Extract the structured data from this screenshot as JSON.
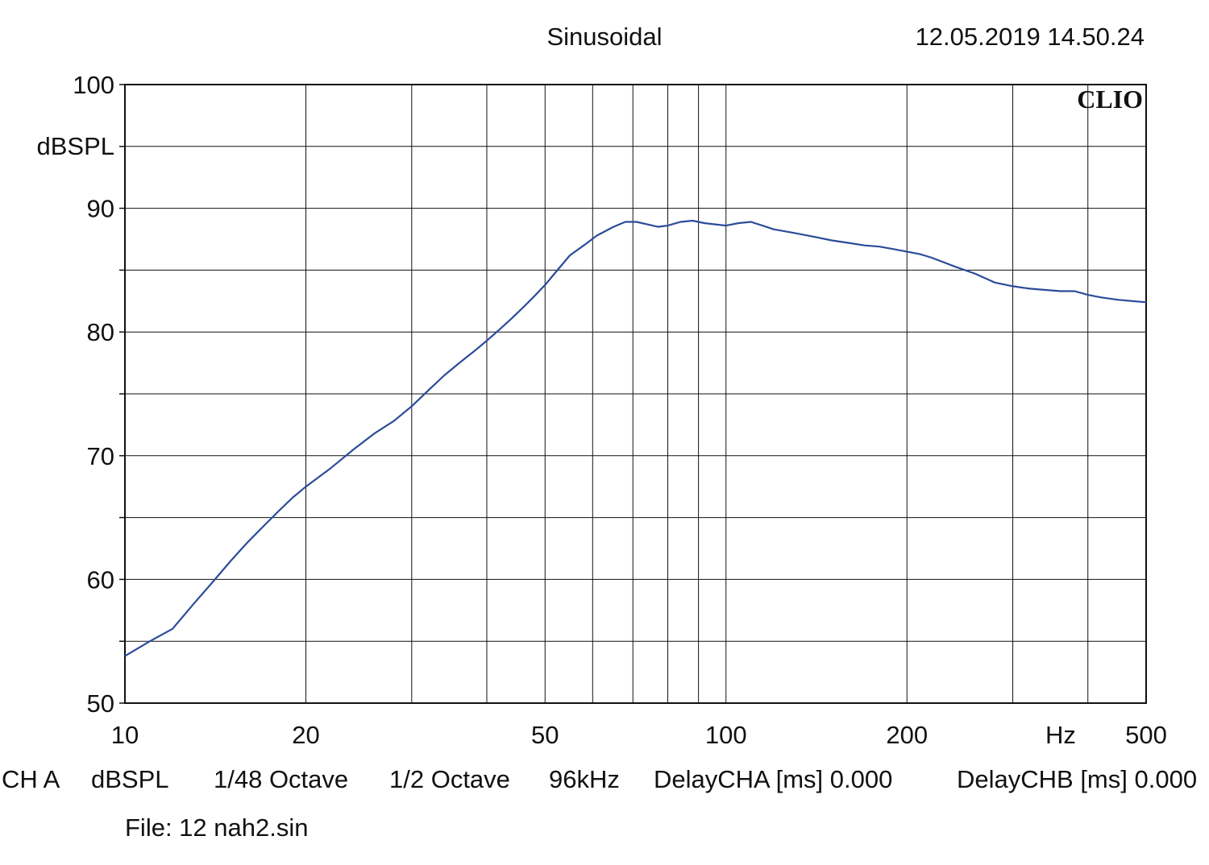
{
  "chart_data": {
    "type": "line",
    "title": "Sinusoidal",
    "timestamp": "12.05.2019 14.50.24",
    "brand": "CLIO",
    "ylabel": "dBSPL",
    "xlabel": "Hz",
    "x_scale": "log",
    "xlim": [
      10,
      500
    ],
    "ylim": [
      50,
      100
    ],
    "grid": true,
    "x_tick_labels": [
      "10",
      "20",
      "50",
      "100",
      "200",
      "500"
    ],
    "y_tick_labels": [
      "100",
      "90",
      "80",
      "70",
      "60",
      "50"
    ],
    "series": [
      {
        "color": "#2b4c9a",
        "x": [
          10,
          11,
          12,
          13,
          14,
          15,
          16,
          17,
          18,
          19,
          20,
          22,
          24,
          26,
          28,
          30,
          32,
          34,
          36,
          38,
          40,
          42,
          44,
          46,
          48,
          50,
          52,
          55,
          58,
          61,
          65,
          68,
          71,
          74,
          77,
          80,
          84,
          88,
          92,
          96,
          100,
          105,
          110,
          115,
          120,
          130,
          140,
          150,
          160,
          170,
          180,
          190,
          200,
          210,
          220,
          240,
          260,
          280,
          300,
          320,
          340,
          360,
          380,
          400,
          420,
          450,
          500
        ],
        "y": [
          53.8,
          55.0,
          56.0,
          58.0,
          59.8,
          61.5,
          63.0,
          64.3,
          65.5,
          66.6,
          67.5,
          69.0,
          70.5,
          71.8,
          72.8,
          74.0,
          75.3,
          76.5,
          77.5,
          78.4,
          79.3,
          80.2,
          81.1,
          82.0,
          82.9,
          83.8,
          84.8,
          86.2,
          87.0,
          87.8,
          88.5,
          88.9,
          88.9,
          88.7,
          88.5,
          88.6,
          88.9,
          89.0,
          88.8,
          88.7,
          88.6,
          88.8,
          88.9,
          88.6,
          88.3,
          88.0,
          87.7,
          87.4,
          87.2,
          87.0,
          86.9,
          86.7,
          86.5,
          86.3,
          86.0,
          85.3,
          84.7,
          84.0,
          83.7,
          83.5,
          83.4,
          83.3,
          83.3,
          83.0,
          82.8,
          82.6,
          82.4
        ]
      }
    ]
  },
  "footer": {
    "channel": "CH A",
    "unit": "dBSPL",
    "smoothing": "1/48 Octave",
    "resolution": "1/2 Octave",
    "sample_rate": "96kHz",
    "delay_cha": "DelayCHA [ms] 0.000",
    "delay_chb": "DelayCHB [ms] 0.000",
    "file": "File: 12 nah2.sin"
  }
}
